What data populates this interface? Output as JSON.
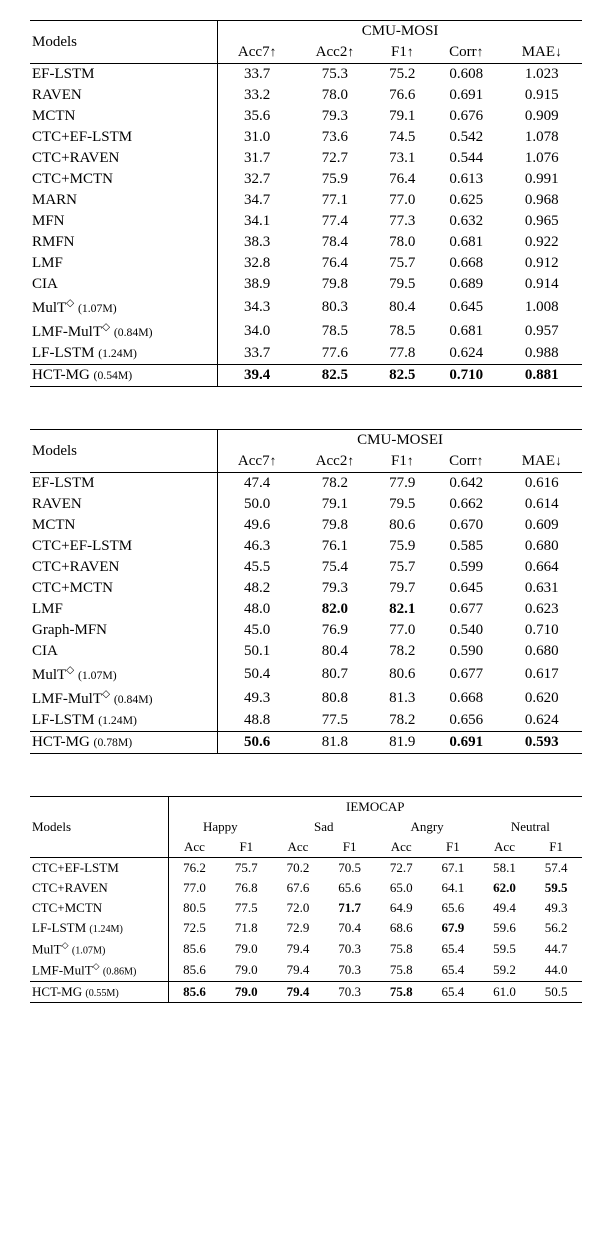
{
  "arrows": {
    "up": "↑",
    "down": "↓"
  },
  "diamond": "◇",
  "tables": {
    "mosi": {
      "header_dataset": "CMU-MOSI",
      "models_label": "Models",
      "metrics": [
        "Acc7",
        "Acc2",
        "F1",
        "Corr",
        "MAE"
      ],
      "metric_dirs": [
        "up",
        "up",
        "up",
        "up",
        "down"
      ],
      "rows": [
        {
          "name": "EF-LSTM",
          "vals": [
            "33.7",
            "75.3",
            "75.2",
            "0.608",
            "1.023"
          ]
        },
        {
          "name": "RAVEN",
          "vals": [
            "33.2",
            "78.0",
            "76.6",
            "0.691",
            "0.915"
          ]
        },
        {
          "name": "MCTN",
          "vals": [
            "35.6",
            "79.3",
            "79.1",
            "0.676",
            "0.909"
          ]
        },
        {
          "name": "CTC+EF-LSTM",
          "vals": [
            "31.0",
            "73.6",
            "74.5",
            "0.542",
            "1.078"
          ]
        },
        {
          "name": "CTC+RAVEN",
          "vals": [
            "31.7",
            "72.7",
            "73.1",
            "0.544",
            "1.076"
          ]
        },
        {
          "name": "CTC+MCTN",
          "vals": [
            "32.7",
            "75.9",
            "76.4",
            "0.613",
            "0.991"
          ]
        },
        {
          "name": "MARN",
          "vals": [
            "34.7",
            "77.1",
            "77.0",
            "0.625",
            "0.968"
          ]
        },
        {
          "name": "MFN",
          "vals": [
            "34.1",
            "77.4",
            "77.3",
            "0.632",
            "0.965"
          ]
        },
        {
          "name": "RMFN",
          "vals": [
            "38.3",
            "78.4",
            "78.0",
            "0.681",
            "0.922"
          ]
        },
        {
          "name": "LMF",
          "vals": [
            "32.8",
            "76.4",
            "75.7",
            "0.668",
            "0.912"
          ]
        },
        {
          "name": "CIA",
          "vals": [
            "38.9",
            "79.8",
            "79.5",
            "0.689",
            "0.914"
          ]
        },
        {
          "name": "MulT",
          "diamond": true,
          "params": "(1.07M)",
          "vals": [
            "34.3",
            "80.3",
            "80.4",
            "0.645",
            "1.008"
          ]
        },
        {
          "name": "LMF-MulT",
          "diamond": true,
          "params": "(0.84M)",
          "vals": [
            "34.0",
            "78.5",
            "78.5",
            "0.681",
            "0.957"
          ]
        },
        {
          "name": "LF-LSTM",
          "params": "(1.24M)",
          "vals": [
            "33.7",
            "77.6",
            "77.8",
            "0.624",
            "0.988"
          ]
        }
      ],
      "final": {
        "name": "HCT-MG",
        "params": "(0.54M)",
        "vals": [
          "39.4",
          "82.5",
          "82.5",
          "0.710",
          "0.881"
        ],
        "bold": [
          true,
          true,
          true,
          true,
          true
        ]
      }
    },
    "mosei": {
      "header_dataset": "CMU-MOSEI",
      "models_label": "Models",
      "metrics": [
        "Acc7",
        "Acc2",
        "F1",
        "Corr",
        "MAE"
      ],
      "metric_dirs": [
        "up",
        "up",
        "up",
        "up",
        "down"
      ],
      "rows": [
        {
          "name": "EF-LSTM",
          "vals": [
            "47.4",
            "78.2",
            "77.9",
            "0.642",
            "0.616"
          ]
        },
        {
          "name": "RAVEN",
          "vals": [
            "50.0",
            "79.1",
            "79.5",
            "0.662",
            "0.614"
          ]
        },
        {
          "name": "MCTN",
          "vals": [
            "49.6",
            "79.8",
            "80.6",
            "0.670",
            "0.609"
          ]
        },
        {
          "name": "CTC+EF-LSTM",
          "vals": [
            "46.3",
            "76.1",
            "75.9",
            "0.585",
            "0.680"
          ]
        },
        {
          "name": "CTC+RAVEN",
          "vals": [
            "45.5",
            "75.4",
            "75.7",
            "0.599",
            "0.664"
          ]
        },
        {
          "name": "CTC+MCTN",
          "vals": [
            "48.2",
            "79.3",
            "79.7",
            "0.645",
            "0.631"
          ]
        },
        {
          "name": "LMF",
          "vals": [
            "48.0",
            "82.0",
            "82.1",
            "0.677",
            "0.623"
          ],
          "bold": [
            false,
            true,
            true,
            false,
            false
          ]
        },
        {
          "name": "Graph-MFN",
          "vals": [
            "45.0",
            "76.9",
            "77.0",
            "0.540",
            "0.710"
          ]
        },
        {
          "name": "CIA",
          "vals": [
            "50.1",
            "80.4",
            "78.2",
            "0.590",
            "0.680"
          ]
        },
        {
          "name": "MulT",
          "diamond": true,
          "params": "(1.07M)",
          "vals": [
            "50.4",
            "80.7",
            "80.6",
            "0.677",
            "0.617"
          ]
        },
        {
          "name": "LMF-MulT",
          "diamond": true,
          "params": "(0.84M)",
          "vals": [
            "49.3",
            "80.8",
            "81.3",
            "0.668",
            "0.620"
          ]
        },
        {
          "name": "LF-LSTM",
          "params": "(1.24M)",
          "vals": [
            "48.8",
            "77.5",
            "78.2",
            "0.656",
            "0.624"
          ]
        }
      ],
      "final": {
        "name": "HCT-MG",
        "params": "(0.78M)",
        "vals": [
          "50.6",
          "81.8",
          "81.9",
          "0.691",
          "0.593"
        ],
        "bold": [
          true,
          false,
          false,
          true,
          true
        ]
      }
    },
    "iemocap": {
      "header_dataset": "IEMOCAP",
      "models_label": "Models",
      "emotions": [
        "Happy",
        "Sad",
        "Angry",
        "Neutral"
      ],
      "subcols": [
        "Acc",
        "F1"
      ],
      "rows": [
        {
          "name": "CTC+EF-LSTM",
          "vals": [
            "76.2",
            "75.7",
            "70.2",
            "70.5",
            "72.7",
            "67.1",
            "58.1",
            "57.4"
          ]
        },
        {
          "name": "CTC+RAVEN",
          "vals": [
            "77.0",
            "76.8",
            "67.6",
            "65.6",
            "65.0",
            "64.1",
            "62.0",
            "59.5"
          ],
          "bold": [
            false,
            false,
            false,
            false,
            false,
            false,
            true,
            true
          ]
        },
        {
          "name": "CTC+MCTN",
          "vals": [
            "80.5",
            "77.5",
            "72.0",
            "71.7",
            "64.9",
            "65.6",
            "49.4",
            "49.3"
          ],
          "bold": [
            false,
            false,
            false,
            true,
            false,
            false,
            false,
            false
          ]
        },
        {
          "name": "LF-LSTM",
          "params": "(1.24M)",
          "vals": [
            "72.5",
            "71.8",
            "72.9",
            "70.4",
            "68.6",
            "67.9",
            "59.6",
            "56.2"
          ],
          "bold": [
            false,
            false,
            false,
            false,
            false,
            true,
            false,
            false
          ]
        },
        {
          "name": "MulT",
          "diamond": true,
          "params": "(1.07M)",
          "vals": [
            "85.6",
            "79.0",
            "79.4",
            "70.3",
            "75.8",
            "65.4",
            "59.5",
            "44.7"
          ]
        },
        {
          "name": "LMF-MulT",
          "diamond": true,
          "params": "(0.86M)",
          "vals": [
            "85.6",
            "79.0",
            "79.4",
            "70.3",
            "75.8",
            "65.4",
            "59.2",
            "44.0"
          ]
        }
      ],
      "final": {
        "name": "HCT-MG",
        "params": "(0.55M)",
        "vals": [
          "85.6",
          "79.0",
          "79.4",
          "70.3",
          "75.8",
          "65.4",
          "61.0",
          "50.5"
        ],
        "bold": [
          true,
          true,
          true,
          false,
          true,
          false,
          false,
          false
        ]
      }
    }
  },
  "style": {
    "bg": "#ffffff",
    "fg": "#000000",
    "font": "Times New Roman",
    "base_fontsize": 15,
    "small_fontsize": 13,
    "rule_heavy": 1.2,
    "rule_light": 0.6
  }
}
